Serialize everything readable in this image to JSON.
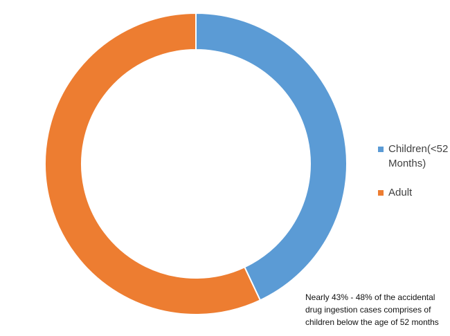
{
  "chart_data": {
    "type": "donut",
    "categories": [
      "Children(<52 Months)",
      "Adult"
    ],
    "values": [
      43,
      57
    ],
    "colors": [
      "#5b9bd5",
      "#ed7d31"
    ],
    "legend": "right",
    "annotation": "Nearly 43% - 48% of the accidental drug ingestion cases comprises of children below the age of 52 months"
  }
}
